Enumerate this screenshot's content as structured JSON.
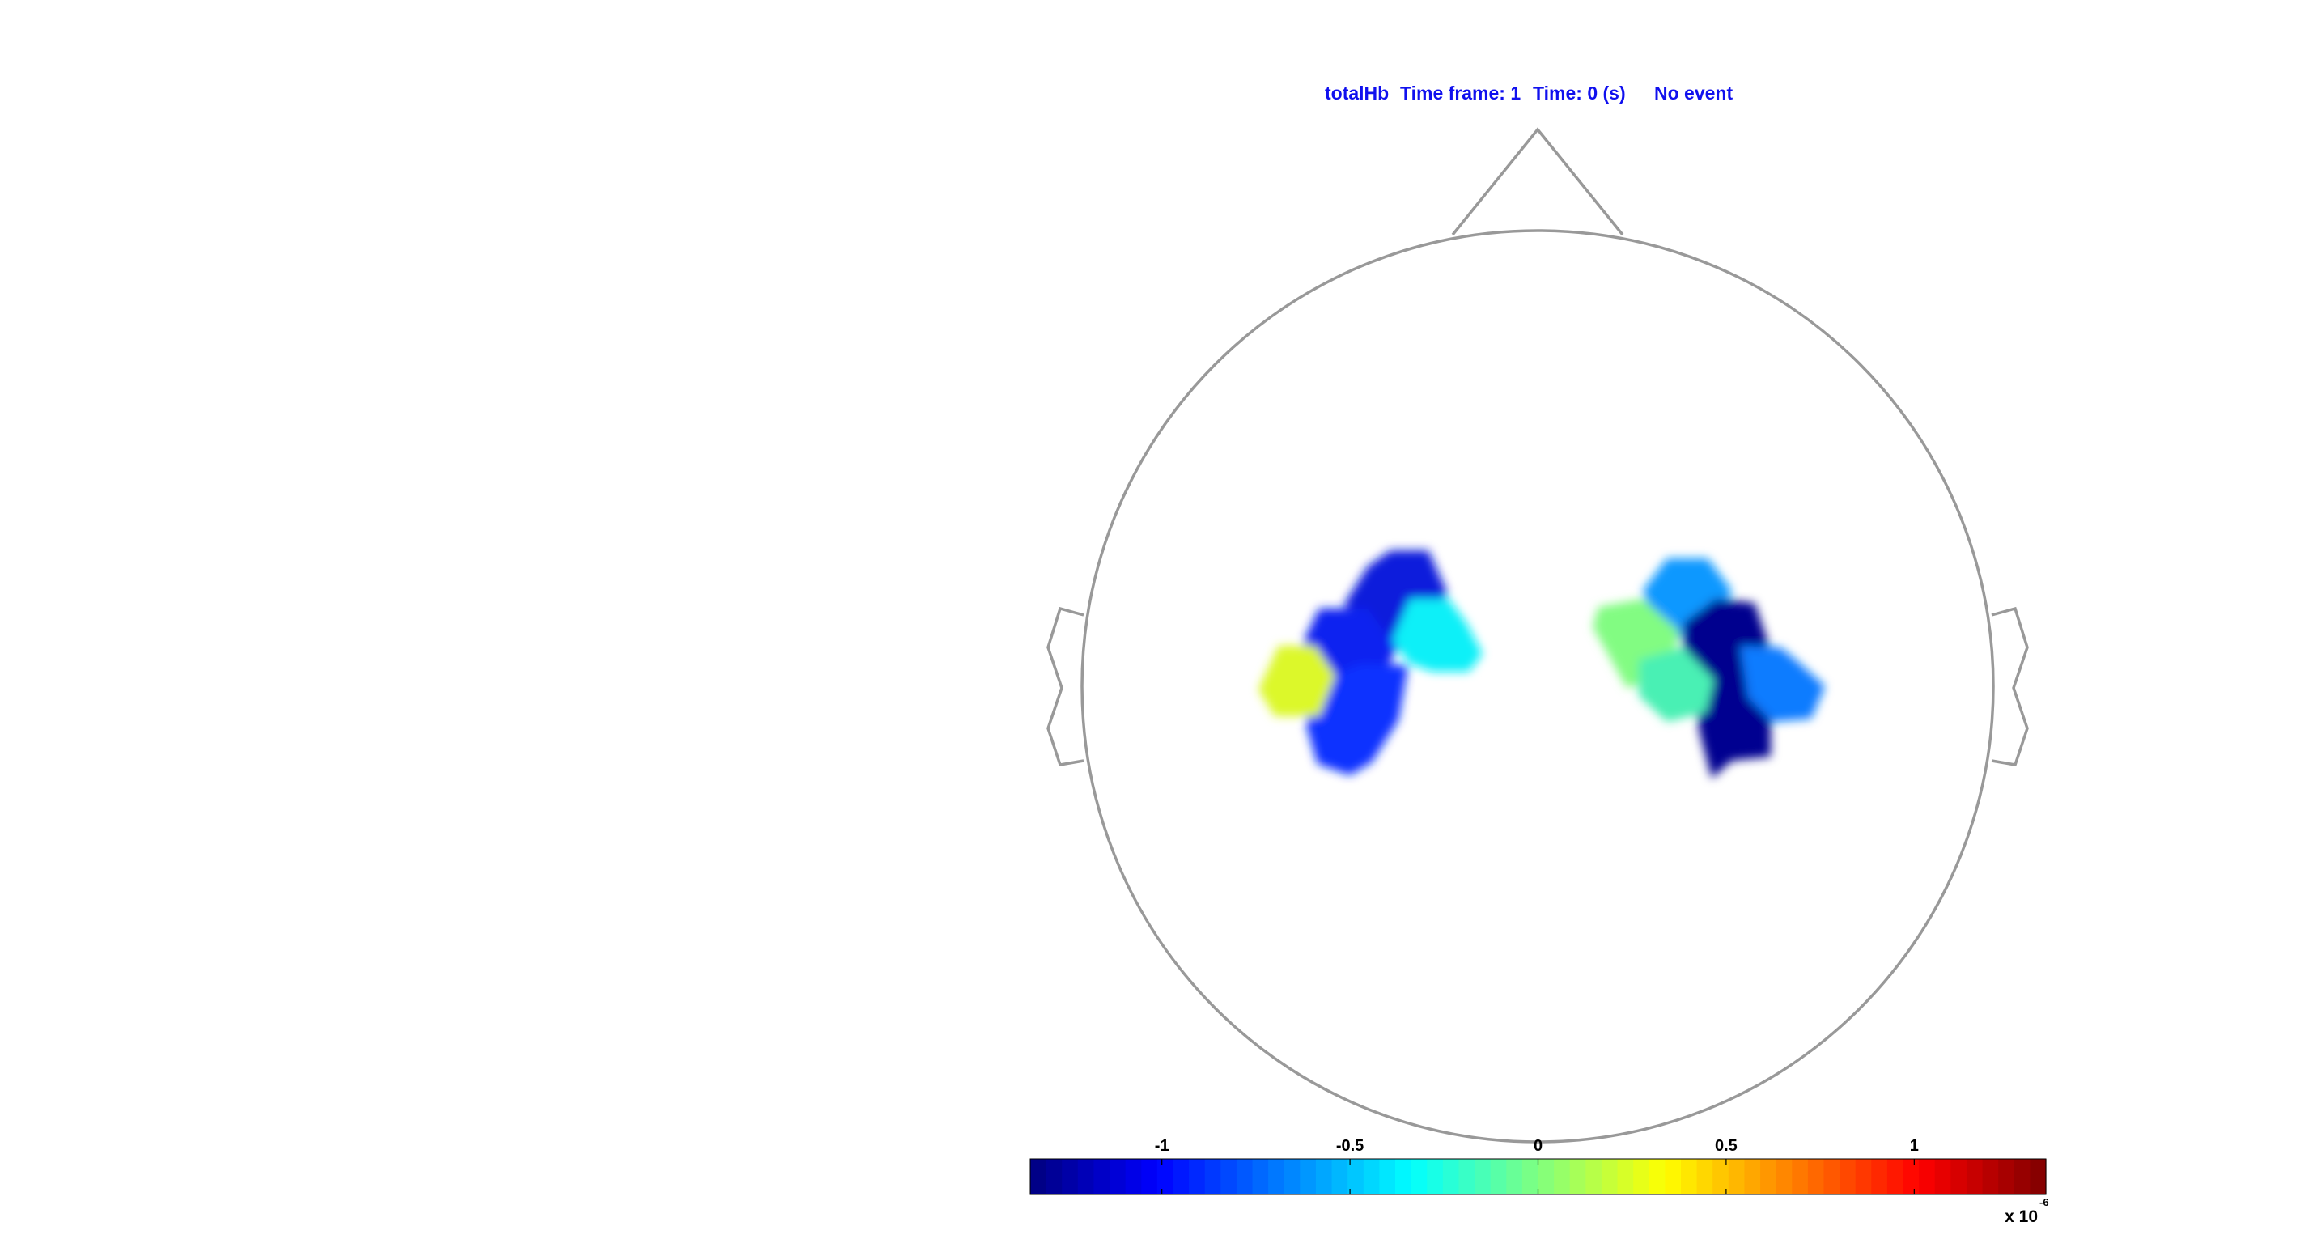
{
  "header": {
    "signal": "totalHb",
    "time_frame": "Time frame: 1",
    "time": "Time: 0 (s)",
    "event": "No event"
  },
  "colorbar": {
    "colormap": "jet",
    "min": -1.35,
    "max": 1.35,
    "ticks": [
      {
        "value": -1,
        "label": "-1"
      },
      {
        "value": -0.5,
        "label": "-0.5"
      },
      {
        "value": 0,
        "label": "0"
      },
      {
        "value": 0.5,
        "label": "0.5"
      },
      {
        "value": 1,
        "label": "1"
      }
    ],
    "multiplier_base": "x 10",
    "multiplier_exponent": "-6"
  },
  "topography": {
    "outline_color": "#999999",
    "patches": [
      {
        "name": "left-upper-patch",
        "color": "#0a1adc"
      },
      {
        "name": "left-mid-patch",
        "color": "#0a22f0"
      },
      {
        "name": "left-lower-patch",
        "color": "#1030ff"
      },
      {
        "name": "left-cyan-patch",
        "color": "#10f0f8"
      },
      {
        "name": "left-yellow-patch",
        "color": "#dcf82a"
      },
      {
        "name": "right-top-patch",
        "color": "#0a98ff"
      },
      {
        "name": "right-dark-upper-patch",
        "color": "#02008e"
      },
      {
        "name": "right-dark-lower-patch",
        "color": "#030090"
      },
      {
        "name": "right-green-patch",
        "color": "#82fc82"
      },
      {
        "name": "right-teal-patch",
        "color": "#4af0b4"
      },
      {
        "name": "right-blue-patch",
        "color": "#0a7cff"
      }
    ]
  }
}
